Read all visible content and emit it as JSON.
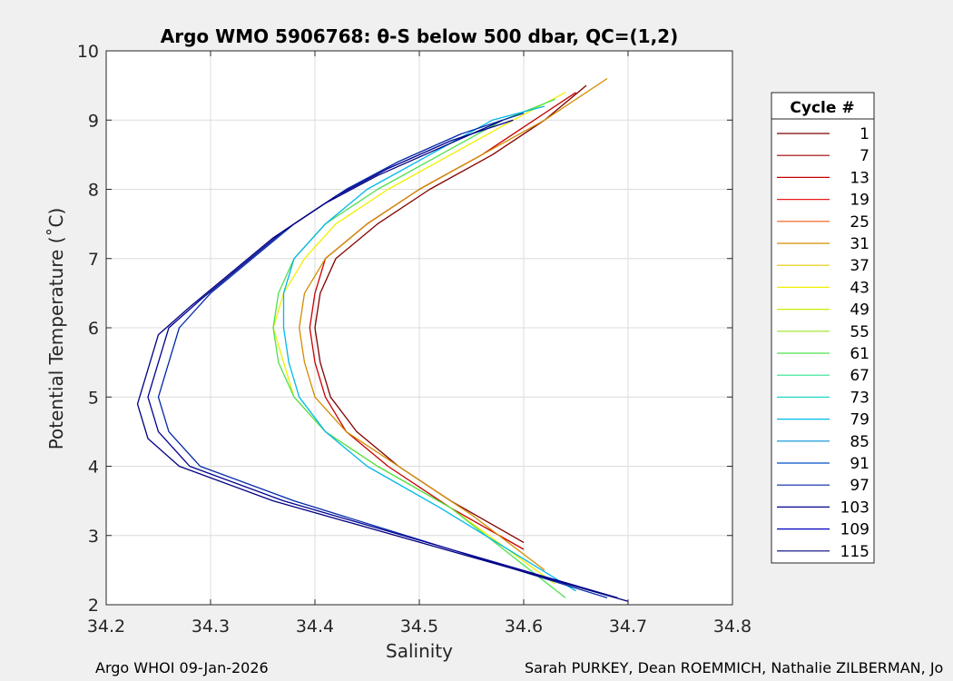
{
  "chart_data": {
    "type": "line",
    "title": "Argo WMO 5906768: θ-S below 500 dbar,  QC=(1,2)",
    "xlabel": "Salinity",
    "ylabel": "Potential Temperature (˚C)",
    "xlim": [
      34.2,
      34.8
    ],
    "ylim": [
      2,
      10
    ],
    "xticks": [
      "34.2",
      "34.3",
      "34.4",
      "34.5",
      "34.6",
      "34.7",
      "34.8"
    ],
    "yticks": [
      "2",
      "3",
      "4",
      "5",
      "6",
      "7",
      "8",
      "9",
      "10"
    ],
    "grid": true,
    "legend": {
      "title": "Cycle #",
      "placement": "right",
      "entries": [
        "1",
        "7",
        "13",
        "19",
        "25",
        "31",
        "37",
        "43",
        "49",
        "55",
        "61",
        "67",
        "73",
        "79",
        "85",
        "91",
        "97",
        "103",
        "109",
        "115"
      ],
      "colors": [
        "#800000",
        "#a00000",
        "#c80000",
        "#e81c1c",
        "#f05a14",
        "#d28c00",
        "#e6c800",
        "#f0f000",
        "#c8f000",
        "#a0e020",
        "#50e050",
        "#30e090",
        "#20d8c8",
        "#00b8e8",
        "#0090d8",
        "#0050c8",
        "#0028a8",
        "#000090",
        "#0000c0",
        "#000080"
      ]
    },
    "series": [
      {
        "name": "1",
        "color": "#800000",
        "salinity": [
          34.66,
          34.62,
          34.57,
          34.51,
          34.46,
          34.42,
          34.405,
          34.4,
          34.405,
          34.415,
          34.44,
          34.48,
          34.53,
          34.6
        ],
        "theta": [
          9.5,
          9.0,
          8.5,
          8.0,
          7.5,
          7.0,
          6.5,
          6.0,
          5.5,
          5.0,
          4.5,
          4.0,
          3.5,
          2.9
        ]
      },
      {
        "name": "13",
        "color": "#c80000",
        "salinity": [
          34.65,
          34.61,
          34.56,
          34.5,
          34.45,
          34.41,
          34.4,
          34.395,
          34.4,
          34.41,
          34.43,
          34.47,
          34.53,
          34.6
        ],
        "theta": [
          9.4,
          9.0,
          8.5,
          8.0,
          7.5,
          7.0,
          6.5,
          6.0,
          5.5,
          5.0,
          4.5,
          4.0,
          3.4,
          2.8
        ]
      },
      {
        "name": "31",
        "color": "#d28c00",
        "salinity": [
          34.68,
          34.62,
          34.56,
          34.5,
          34.45,
          34.41,
          34.39,
          34.385,
          34.39,
          34.4,
          34.43,
          34.48,
          34.55,
          34.62
        ],
        "theta": [
          9.6,
          9.0,
          8.5,
          8.0,
          7.5,
          7.0,
          6.5,
          6.0,
          5.5,
          5.0,
          4.5,
          4.0,
          3.3,
          2.5
        ]
      },
      {
        "name": "43",
        "color": "#f0f000",
        "salinity": [
          34.64,
          34.59,
          34.53,
          34.47,
          34.42,
          34.39,
          34.37,
          34.36,
          34.37,
          34.38,
          34.41,
          34.46,
          34.53,
          34.63
        ],
        "theta": [
          9.4,
          9.0,
          8.5,
          8.0,
          7.5,
          7.0,
          6.5,
          6.0,
          5.5,
          5.0,
          4.5,
          4.0,
          3.4,
          2.3
        ]
      },
      {
        "name": "61",
        "color": "#50e050",
        "salinity": [
          34.63,
          34.58,
          34.52,
          34.46,
          34.41,
          34.38,
          34.365,
          34.36,
          34.365,
          34.38,
          34.41,
          34.46,
          34.53,
          34.64
        ],
        "theta": [
          9.3,
          9.0,
          8.5,
          8.0,
          7.5,
          7.0,
          6.5,
          6.0,
          5.5,
          5.0,
          4.5,
          4.0,
          3.4,
          2.1
        ]
      },
      {
        "name": "79",
        "color": "#00b8e8",
        "salinity": [
          34.62,
          34.57,
          34.51,
          34.45,
          34.41,
          34.38,
          34.37,
          34.37,
          34.375,
          34.385,
          34.41,
          34.45,
          34.52,
          34.65
        ],
        "theta": [
          9.2,
          9.0,
          8.5,
          8.0,
          7.5,
          7.0,
          6.5,
          6.0,
          5.5,
          5.0,
          4.5,
          4.0,
          3.4,
          2.2
        ]
      },
      {
        "name": "97",
        "color": "#0028a8",
        "salinity": [
          34.6,
          34.54,
          34.48,
          34.43,
          34.38,
          34.34,
          34.3,
          34.27,
          34.26,
          34.25,
          34.26,
          34.29,
          34.38,
          34.68
        ],
        "theta": [
          9.1,
          8.8,
          8.4,
          8.0,
          7.5,
          7.0,
          6.5,
          6.0,
          5.5,
          5.0,
          4.5,
          4.0,
          3.5,
          2.1
        ]
      },
      {
        "name": "103",
        "color": "#000090",
        "salinity": [
          34.59,
          34.53,
          34.47,
          34.42,
          34.37,
          34.33,
          34.29,
          34.26,
          34.25,
          34.24,
          34.25,
          34.28,
          34.37,
          34.69
        ],
        "theta": [
          9.0,
          8.7,
          8.3,
          7.9,
          7.4,
          6.9,
          6.4,
          6.0,
          5.5,
          5.0,
          4.5,
          4.0,
          3.5,
          2.1
        ]
      },
      {
        "name": "115",
        "color": "#000080",
        "salinity": [
          34.58,
          34.52,
          34.46,
          34.41,
          34.36,
          34.32,
          34.28,
          34.25,
          34.24,
          34.23,
          34.24,
          34.27,
          34.36,
          34.7
        ],
        "theta": [
          9.0,
          8.6,
          8.2,
          7.8,
          7.3,
          6.8,
          6.3,
          5.9,
          5.4,
          4.9,
          4.4,
          4.0,
          3.5,
          2.05
        ]
      }
    ]
  },
  "footer": {
    "left": "Argo WHOI 09-Jan-2026",
    "right": "Sarah PURKEY, Dean ROEMMICH, Nathalie ZILBERMAN, Jo"
  }
}
